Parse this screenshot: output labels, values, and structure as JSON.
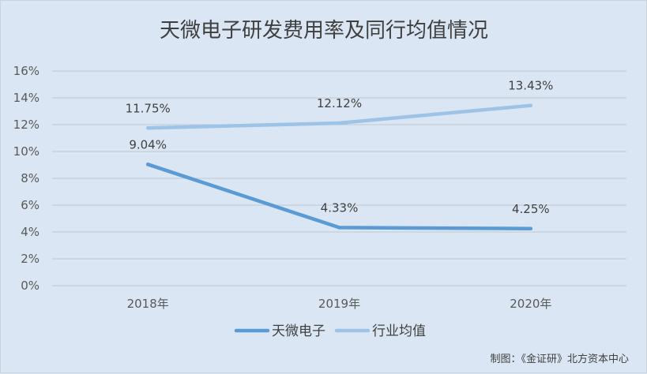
{
  "title": "天微电子研发费用率及同行均值情况",
  "credit": "制图：《金证研》北方资本中心",
  "chart_data": {
    "type": "line",
    "title": "天微电子研发费用率及同行均值情况",
    "categories": [
      "2018年",
      "2019年",
      "2020年"
    ],
    "ylim": [
      0,
      16
    ],
    "yticks": [
      0,
      2,
      4,
      6,
      8,
      10,
      12,
      14,
      16
    ],
    "ytick_labels": [
      "0%",
      "2%",
      "4%",
      "6%",
      "8%",
      "10%",
      "12%",
      "14%",
      "16%"
    ],
    "grid": true,
    "legend_position": "bottom",
    "series": [
      {
        "name": "天微电子",
        "values": [
          9.04,
          4.33,
          4.25
        ],
        "labels": [
          "9.04%",
          "4.33%",
          "4.25%"
        ],
        "color": "#5b9bd5"
      },
      {
        "name": "行业均值",
        "values": [
          11.75,
          12.12,
          13.43
        ],
        "labels": [
          "11.75%",
          "12.12%",
          "13.43%"
        ],
        "color": "#9dc3e6"
      }
    ]
  }
}
